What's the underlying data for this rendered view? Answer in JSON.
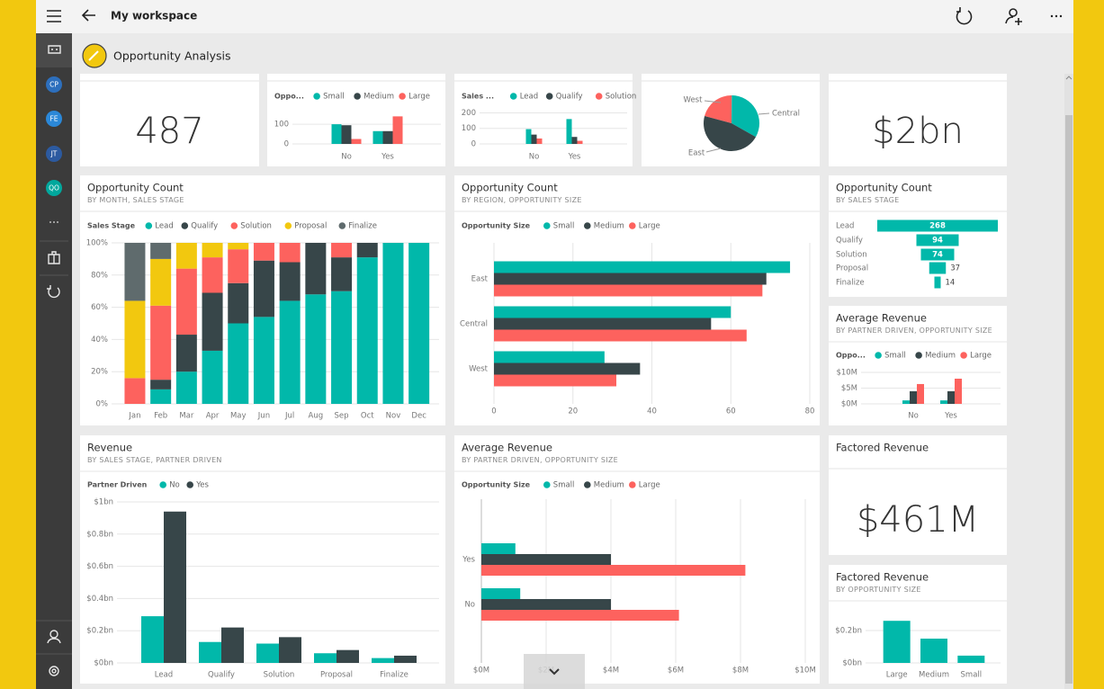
{
  "app": {
    "nav_title": "My workspace"
  },
  "sidebar": {
    "avatars": [
      {
        "initials": "CP",
        "color": "#2d6fbd"
      },
      {
        "initials": "FE",
        "color": "#2b88d8"
      },
      {
        "initials": "JT",
        "color": "#2c5aa0"
      },
      {
        "initials": "QO",
        "color": "#00a89d"
      }
    ]
  },
  "dashboard": {
    "title": "Opportunity Analysis",
    "tiles": [
      {
        "type": "card",
        "value": 487
      },
      {
        "type": "column",
        "legend_title": "Oppo...",
        "categories": [
          "No",
          "Yes"
        ],
        "series": [
          {
            "name": "Small",
            "color": "#01b8aa",
            "values": [
              100,
              65
            ]
          },
          {
            "name": "Medium",
            "color": "#374649",
            "values": [
              95,
              65
            ]
          },
          {
            "name": "Large",
            "color": "#fd625e",
            "values": [
              25,
              140
            ]
          }
        ],
        "ylim": [
          0,
          160
        ],
        "yticks": [
          0,
          100
        ]
      },
      {
        "type": "column",
        "legend_title": "Sales ...",
        "categories": [
          "No",
          "Yes"
        ],
        "series": [
          {
            "name": "Lead",
            "color": "#01b8aa",
            "values": [
              95,
              160
            ]
          },
          {
            "name": "Qualify",
            "color": "#374649",
            "values": [
              60,
              45
            ]
          },
          {
            "name": "Solution",
            "color": "#fd625e",
            "values": [
              35,
              20
            ]
          }
        ],
        "ylim": [
          0,
          220
        ],
        "yticks": [
          0,
          100,
          200
        ]
      },
      {
        "type": "pie",
        "categories": [
          "West",
          "Central",
          "East"
        ],
        "values": [
          21,
          33,
          46
        ],
        "colors": [
          "#fd625e",
          "#01b8aa",
          "#374649"
        ]
      },
      {
        "type": "card",
        "value": "$2bn"
      },
      {
        "type": "column",
        "stacked": true,
        "title": "Opportunity Count",
        "subtitle": "BY MONTH, SALES STAGE",
        "legend_title": "Sales Stage",
        "categories": [
          "Jan",
          "Feb",
          "Mar",
          "Apr",
          "May",
          "Jun",
          "Jul",
          "Aug",
          "Sep",
          "Oct",
          "Nov",
          "Dec"
        ],
        "series": [
          {
            "name": "Lead",
            "color": "#01b8aa",
            "values": [
              0,
              9,
              20,
              33,
              50,
              54,
              64,
              68,
              70,
              91,
              100,
              100
            ]
          },
          {
            "name": "Qualify",
            "color": "#374649",
            "values": [
              0,
              6,
              23,
              36,
              25,
              35,
              24,
              32,
              21,
              9,
              0,
              0
            ]
          },
          {
            "name": "Solution",
            "color": "#fd625e",
            "values": [
              16,
              46,
              41,
              22,
              21,
              11,
              12,
              0,
              9,
              0,
              0,
              0
            ]
          },
          {
            "name": "Proposal",
            "color": "#f2c80f",
            "values": [
              48,
              29,
              16,
              9,
              4,
              0,
              0,
              0,
              0,
              0,
              0,
              0
            ]
          },
          {
            "name": "Finalize",
            "color": "#5f6b6d",
            "values": [
              36,
              10,
              0,
              0,
              0,
              0,
              0,
              0,
              0,
              0,
              0,
              0
            ]
          }
        ],
        "ylim": [
          0,
          100
        ],
        "yticks": [
          {
            "value": 0,
            "label": "0%"
          },
          {
            "value": 20,
            "label": "20%"
          },
          {
            "value": 40,
            "label": "40%"
          },
          {
            "value": 60,
            "label": "60%"
          },
          {
            "value": 80,
            "label": "80%"
          },
          {
            "value": 100,
            "label": "100%"
          }
        ]
      },
      {
        "type": "bar",
        "title": "Opportunity Count",
        "subtitle": "BY REGION, OPPORTUNITY SIZE",
        "legend_title": "Opportunity Size",
        "categories": [
          "East",
          "Central",
          "West"
        ],
        "series": [
          {
            "name": "Small",
            "color": "#01b8aa",
            "values": [
              75,
              60,
              28
            ]
          },
          {
            "name": "Medium",
            "color": "#374649",
            "values": [
              69,
              55,
              37
            ]
          },
          {
            "name": "Large",
            "color": "#fd625e",
            "values": [
              68,
              64,
              31
            ]
          }
        ],
        "xlim": [
          0,
          80
        ],
        "xticks": [
          0,
          20,
          40,
          60,
          80
        ]
      },
      {
        "type": "funnel",
        "title": "Opportunity Count",
        "subtitle": "BY SALES STAGE",
        "categories": [
          "Lead",
          "Qualify",
          "Solution",
          "Proposal",
          "Finalize"
        ],
        "values": [
          268,
          94,
          74,
          37,
          14
        ],
        "color": "#01b8aa"
      },
      {
        "type": "column",
        "title": "Average Revenue",
        "subtitle": "BY PARTNER DRIVEN, OPPORTUNITY SIZE",
        "legend_title": "Oppo...",
        "categories": [
          "No",
          "Yes"
        ],
        "series": [
          {
            "name": "Small",
            "color": "#01b8aa",
            "values": [
              1.1,
              1.1
            ]
          },
          {
            "name": "Medium",
            "color": "#374649",
            "values": [
              4,
              4
            ]
          },
          {
            "name": "Large",
            "color": "#fd625e",
            "values": [
              6.3,
              8
            ]
          }
        ],
        "ylim": [
          0,
          12
        ],
        "yticks": [
          {
            "value": 0,
            "label": "$0M"
          },
          {
            "value": 5,
            "label": "$5M"
          },
          {
            "value": 10,
            "label": "$10M"
          }
        ]
      },
      {
        "type": "column",
        "title": "Revenue",
        "subtitle": "BY SALES STAGE, PARTNER DRIVEN",
        "legend_title": "Partner Driven",
        "categories": [
          "Lead",
          "Qualify",
          "Solution",
          "Proposal",
          "Finalize"
        ],
        "series": [
          {
            "name": "No",
            "color": "#01b8aa",
            "values": [
              0.29,
              0.13,
              0.12,
              0.06,
              0.03
            ]
          },
          {
            "name": "Yes",
            "color": "#374649",
            "values": [
              0.94,
              0.22,
              0.16,
              0.08,
              0.045
            ]
          }
        ],
        "ylim": [
          0,
          1
        ],
        "yticks": [
          {
            "value": 0,
            "label": "$0bn"
          },
          {
            "value": 0.2,
            "label": "$0.2bn"
          },
          {
            "value": 0.4,
            "label": "$0.4bn"
          },
          {
            "value": 0.6,
            "label": "$0.6bn"
          },
          {
            "value": 0.8,
            "label": "$0.8bn"
          },
          {
            "value": 1,
            "label": "$1bn"
          }
        ]
      },
      {
        "type": "bar",
        "title": "Average Revenue",
        "subtitle": "BY PARTNER DRIVEN, OPPORTUNITY SIZE",
        "legend_title": "Opportunity Size",
        "categories": [
          "Yes",
          "No"
        ],
        "series": [
          {
            "name": "Small",
            "color": "#01b8aa",
            "values": [
              1.05,
              1.2
            ]
          },
          {
            "name": "Medium",
            "color": "#374649",
            "values": [
              4,
              4
            ]
          },
          {
            "name": "Large",
            "color": "#fd625e",
            "values": [
              8.15,
              6.1
            ]
          }
        ],
        "xlim": [
          0,
          10
        ],
        "xticks": [
          {
            "value": 0,
            "label": "$0M"
          },
          {
            "value": 2,
            "label": "$2M"
          },
          {
            "value": 4,
            "label": "$4M"
          },
          {
            "value": 6,
            "label": "$6M"
          },
          {
            "value": 8,
            "label": "$8M"
          },
          {
            "value": 10,
            "label": "$10M"
          }
        ]
      },
      {
        "type": "card",
        "title": "Factored Revenue",
        "value": "$461M"
      },
      {
        "type": "column",
        "title": "Factored Revenue",
        "subtitle": "BY OPPORTUNITY SIZE",
        "categories": [
          "Large",
          "Medium",
          "Small"
        ],
        "values": [
          0.26,
          0.15,
          0.045
        ],
        "color": "#01b8aa",
        "ylim": [
          0,
          0.3
        ],
        "yticks": [
          {
            "value": 0,
            "label": "$0bn"
          },
          {
            "value": 0.2,
            "label": "$0.2bn"
          }
        ]
      }
    ]
  }
}
